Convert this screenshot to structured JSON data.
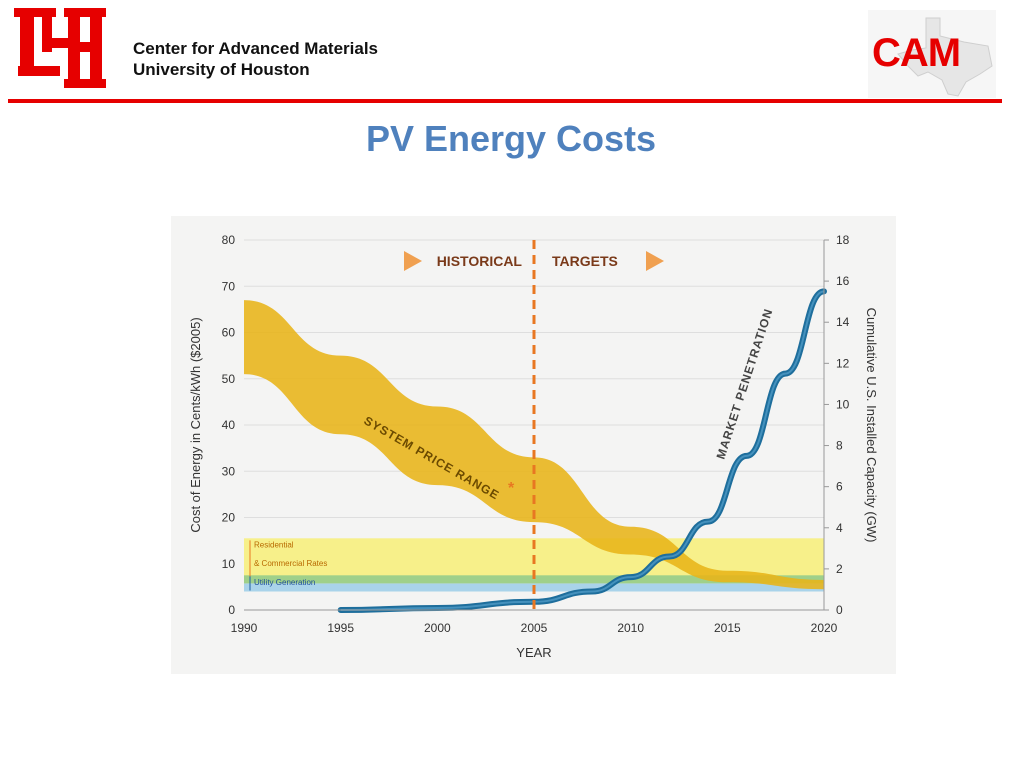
{
  "header": {
    "org_line1": "Center for Advanced Materials",
    "org_line2": "University of Houston",
    "logo_left": "UH",
    "logo_right": "CAM"
  },
  "slide": {
    "title": "PV Energy Costs"
  },
  "colors": {
    "brand_red": "#e60000",
    "title_blue": "#4f81bd",
    "band_gold": "#e8b418",
    "residential_yellow": "#f7f08a",
    "utility_green": "#9fd08a",
    "utility_blue": "#a9d3ea",
    "penetration_blue": "#1e6e9c",
    "divider_orange": "#e87722"
  },
  "chart_data": {
    "type": "area",
    "xlabel": "YEAR",
    "ylabel": "Cost of Energy in Cents/kWh ($2005)",
    "y2label": "Cumulative U.S. Installed Capacity (GW)",
    "xlim": [
      1990,
      2020
    ],
    "ylim": [
      0,
      80
    ],
    "y2lim": [
      0,
      18
    ],
    "xticks": [
      1990,
      1995,
      2000,
      2005,
      2010,
      2015,
      2020
    ],
    "yticks": [
      0,
      10,
      20,
      30,
      40,
      50,
      60,
      70,
      80
    ],
    "y2ticks": [
      0,
      2,
      4,
      6,
      8,
      10,
      12,
      14,
      16,
      18
    ],
    "grid": true,
    "divider": {
      "x": 2005,
      "left_label": "HISTORICAL",
      "right_label": "TARGETS"
    },
    "series": [
      {
        "name": "SYSTEM PRICE RANGE",
        "marker": "*",
        "type": "band",
        "x": [
          1990,
          1995,
          2000,
          2005,
          2010,
          2015,
          2020
        ],
        "upper": [
          67,
          55,
          44,
          33,
          18,
          8.5,
          6.5
        ],
        "lower": [
          51,
          38,
          27,
          19,
          12,
          6,
          4.5
        ]
      },
      {
        "name": "MARKET PENETRATION",
        "type": "line",
        "axis": "y2",
        "x": [
          1995,
          2000,
          2005,
          2008,
          2010,
          2012,
          2014,
          2016,
          2018,
          2020
        ],
        "values": [
          0,
          0.1,
          0.4,
          0.9,
          1.6,
          2.6,
          4.3,
          7.5,
          11.5,
          15.5
        ]
      }
    ],
    "reference_bands": [
      {
        "name": "Residential & Commercial Rates",
        "range": [
          5,
          15.5
        ]
      },
      {
        "name": "Utility Generation",
        "range": [
          4,
          7.5
        ]
      }
    ]
  }
}
